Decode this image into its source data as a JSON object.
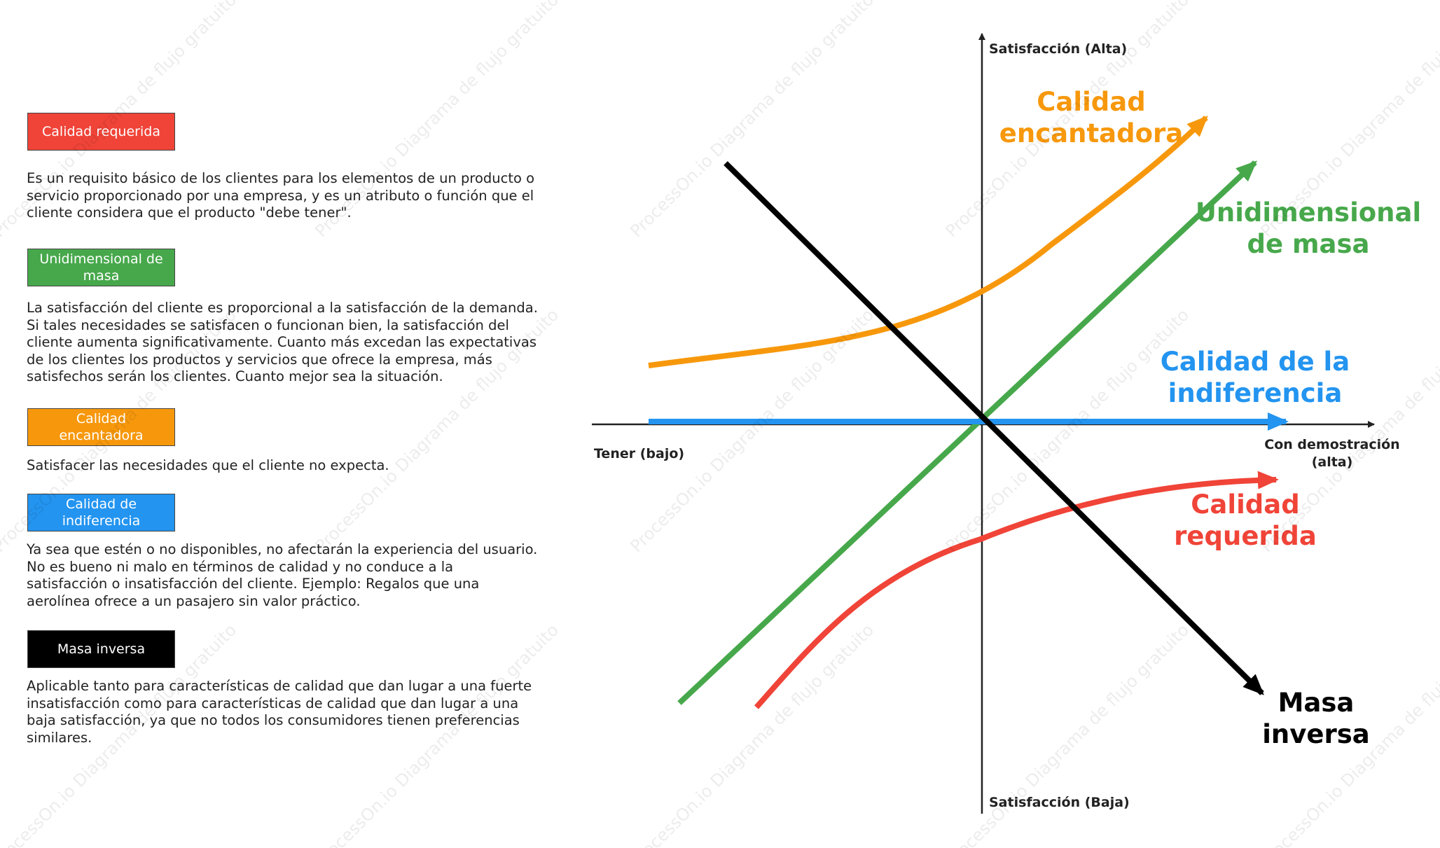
{
  "legend": [
    {
      "label": "Calidad requerida",
      "color": "#f04438",
      "description": "Es un requisito básico de los clientes para los elementos de un producto o servicio proporcionado por una empresa, y es un atributo o función que el cliente considera que el producto \"debe tener\"."
    },
    {
      "label": "Unidimensional de masa",
      "color": "#47a84b",
      "description": "La satisfacción del cliente es proporcional a la satisfacción de la demanda. Si tales necesidades se satisfacen o funcionan bien, la satisfacción del cliente aumenta significativamente. Cuanto más excedan las expectativas de los clientes los productos y servicios que ofrece la empresa, más satisfechos serán los clientes. Cuanto mejor sea la situación."
    },
    {
      "label": "Calidad encantadora",
      "color": "#f7980c",
      "description": "Satisfacer las necesidades que el cliente no expecta."
    },
    {
      "label": "Calidad de indiferencia",
      "color": "#2394f0",
      "description": "Ya sea que estén o no disponibles, no afectarán la experiencia del usuario. No es bueno ni malo en términos de calidad y no conduce a la satisfacción o insatisfacción del cliente. Ejemplo: Regalos que una aerolínea ofrece a un pasajero sin valor práctico."
    },
    {
      "label": "Masa inversa",
      "color": "#000000",
      "description": "Aplicable tanto para características de calidad que dan lugar a una fuerte insatisfacción como para características de calidad que dan lugar a una baja satisfacción, ya que no todos los consumidores tienen preferencias similares."
    }
  ],
  "axes": {
    "y_top": "Satisfacción (Alta)",
    "y_bottom": "Satisfacción (Baja)",
    "x_left": "Tener (bajo)",
    "x_right_line1": "Con demostración",
    "x_right_line2": "(alta)"
  },
  "curves": {
    "delight": {
      "line1": "Calidad",
      "line2": "encantadora",
      "color": "#f7980c"
    },
    "one_dim": {
      "line1": "Unidimensional",
      "line2": "de masa",
      "color": "#47a84b"
    },
    "indiff": {
      "line1": "Calidad de la",
      "line2": "indiferencia",
      "color": "#2394f0"
    },
    "required": {
      "line1": "Calidad",
      "line2": "requerida",
      "color": "#f04438"
    },
    "reverse": {
      "line1": "Masa",
      "line2": "inversa",
      "color": "#000000"
    }
  },
  "watermark": "ProcessOn.io Diagrama de flujo gratuito"
}
